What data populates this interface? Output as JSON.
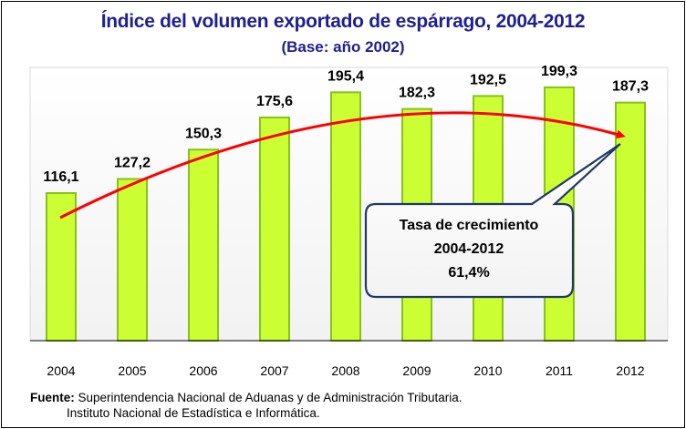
{
  "title": "Índice del volumen exportado de espárrago, 2004-2012",
  "subtitle": "(Base: año 2002)",
  "chart_data": {
    "type": "bar",
    "categories": [
      "2004",
      "2005",
      "2006",
      "2007",
      "2008",
      "2009",
      "2010",
      "2011",
      "2012"
    ],
    "values": [
      116.1,
      127.2,
      150.3,
      175.6,
      195.4,
      182.3,
      192.5,
      199.3,
      187.3
    ],
    "value_labels": [
      "116,1",
      "127,2",
      "150,3",
      "175,6",
      "195,4",
      "182,3",
      "192,5",
      "199,3",
      "187,3"
    ],
    "title": "Índice del volumen exportado de espárrago, 2004-2012",
    "xlabel": "",
    "ylabel": "",
    "ylim": [
      0,
      215
    ],
    "grid": false,
    "bar_color": "#ccff33",
    "bar_border_color": "#86c21a",
    "trend_color": "#ff0000"
  },
  "callout": {
    "line1": "Tasa de crecimiento",
    "line2": "2004-2012",
    "line3": "61,4%",
    "border_color": "#1f3864"
  },
  "source": {
    "label": "Fuente:",
    "line1": "Superintendencia Nacional de Aduanas y de Administración Tributaria.",
    "line2": "Instituto  Nacional de Estadística e Informática."
  }
}
